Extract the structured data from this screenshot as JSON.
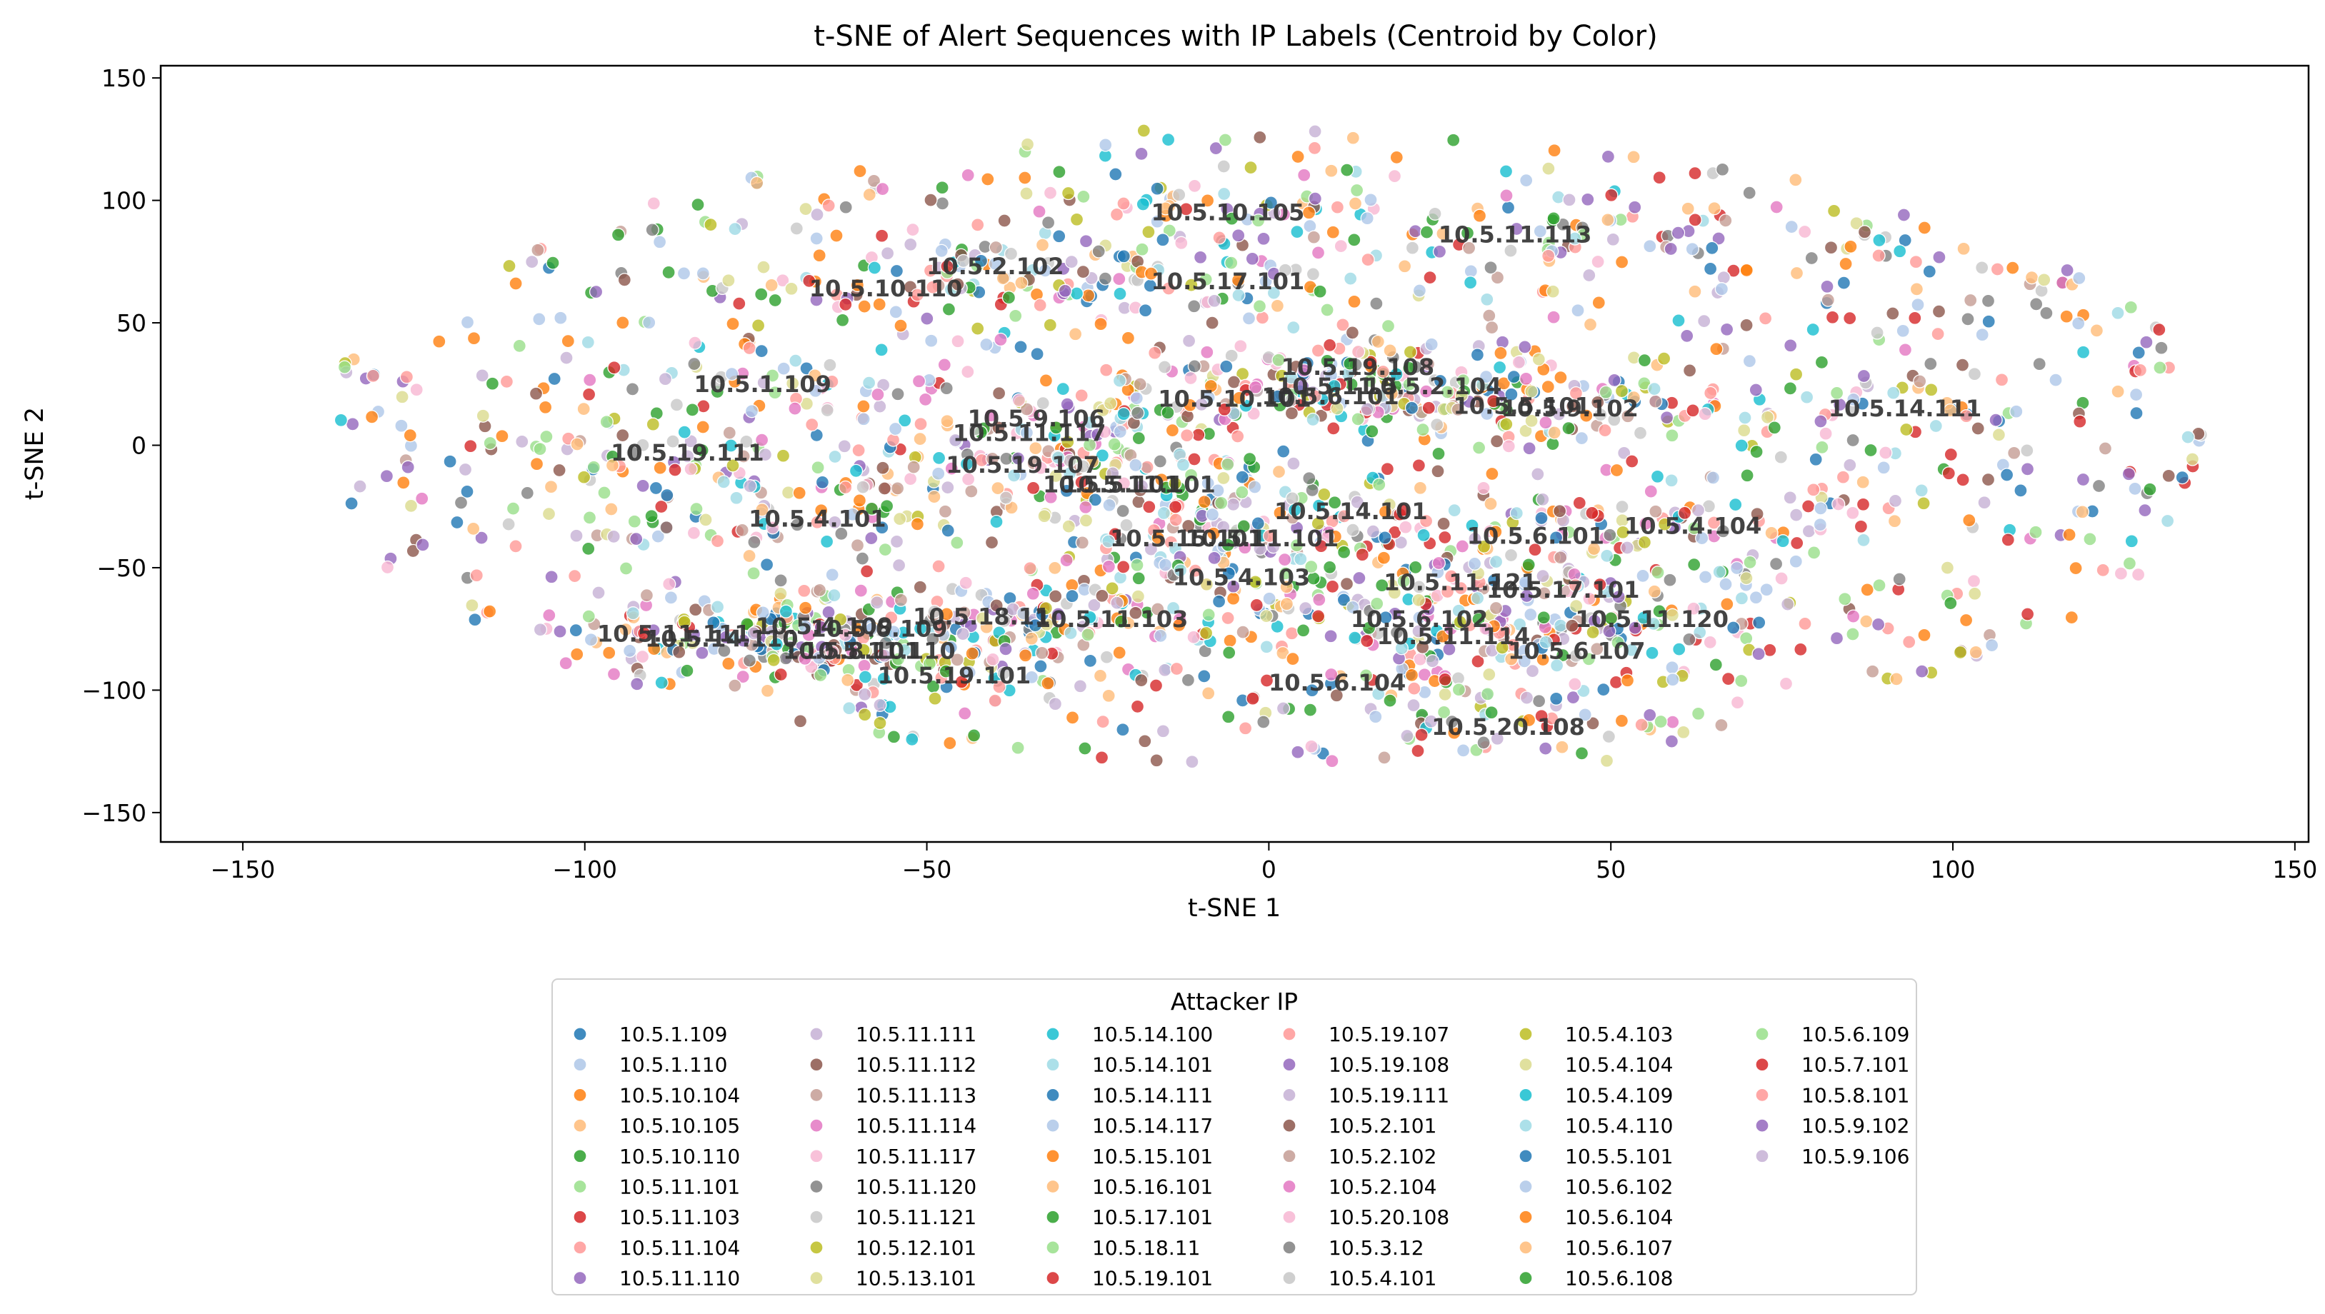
{
  "chart_data": {
    "type": "scatter",
    "title": "t-SNE of Alert Sequences with IP Labels (Centroid by Color)",
    "xlabel": "t-SNE 1",
    "ylabel": "t-SNE 2",
    "xlim": [
      -162,
      152
    ],
    "ylim": [
      -162,
      155
    ],
    "xticks": [
      -150,
      -100,
      -50,
      0,
      50,
      100,
      150
    ],
    "yticks": [
      150,
      100,
      50,
      0,
      -50,
      -100,
      -150
    ],
    "xtick_labels": [
      "−150",
      "−100",
      "−50",
      "0",
      "50",
      "100",
      "150"
    ],
    "ytick_labels": [
      "150",
      "100",
      "50",
      "0",
      "−50",
      "−100",
      "−150"
    ],
    "grid": false,
    "legend": {
      "title": "Attacker IP",
      "placement": "below the plot, centered, 6 columns"
    },
    "series": [
      {
        "name": "10.5.1.109",
        "color": "#1f77b4"
      },
      {
        "name": "10.5.1.110",
        "color": "#aec7e8"
      },
      {
        "name": "10.5.10.104",
        "color": "#ff7f0e"
      },
      {
        "name": "10.5.10.105",
        "color": "#ffbb78"
      },
      {
        "name": "10.5.10.110",
        "color": "#2ca02c"
      },
      {
        "name": "10.5.11.101",
        "color": "#98df8a"
      },
      {
        "name": "10.5.11.103",
        "color": "#d62728"
      },
      {
        "name": "10.5.11.104",
        "color": "#ff9896"
      },
      {
        "name": "10.5.11.110",
        "color": "#9467bd"
      },
      {
        "name": "10.5.11.111",
        "color": "#c5b0d5"
      },
      {
        "name": "10.5.11.112",
        "color": "#8c564b"
      },
      {
        "name": "10.5.11.113",
        "color": "#c49c94"
      },
      {
        "name": "10.5.11.114",
        "color": "#e377c2"
      },
      {
        "name": "10.5.11.117",
        "color": "#f7b6d2"
      },
      {
        "name": "10.5.11.120",
        "color": "#7f7f7f"
      },
      {
        "name": "10.5.11.121",
        "color": "#c7c7c7"
      },
      {
        "name": "10.5.12.101",
        "color": "#bcbd22"
      },
      {
        "name": "10.5.13.101",
        "color": "#dbdb8d"
      },
      {
        "name": "10.5.14.100",
        "color": "#17becf"
      },
      {
        "name": "10.5.14.101",
        "color": "#9edae5"
      },
      {
        "name": "10.5.14.111",
        "color": "#1f77b4"
      },
      {
        "name": "10.5.14.117",
        "color": "#aec7e8"
      },
      {
        "name": "10.5.15.101",
        "color": "#ff7f0e"
      },
      {
        "name": "10.5.16.101",
        "color": "#ffbb78"
      },
      {
        "name": "10.5.17.101",
        "color": "#2ca02c"
      },
      {
        "name": "10.5.18.11",
        "color": "#98df8a"
      },
      {
        "name": "10.5.19.101",
        "color": "#d62728"
      },
      {
        "name": "10.5.19.107",
        "color": "#ff9896"
      },
      {
        "name": "10.5.19.108",
        "color": "#9467bd"
      },
      {
        "name": "10.5.19.111",
        "color": "#c5b0d5"
      },
      {
        "name": "10.5.2.101",
        "color": "#8c564b"
      },
      {
        "name": "10.5.2.102",
        "color": "#c49c94"
      },
      {
        "name": "10.5.2.104",
        "color": "#e377c2"
      },
      {
        "name": "10.5.20.108",
        "color": "#f7b6d2"
      },
      {
        "name": "10.5.3.12",
        "color": "#7f7f7f"
      },
      {
        "name": "10.5.4.101",
        "color": "#c7c7c7"
      },
      {
        "name": "10.5.4.103",
        "color": "#bcbd22"
      },
      {
        "name": "10.5.4.104",
        "color": "#dbdb8d"
      },
      {
        "name": "10.5.4.109",
        "color": "#17becf"
      },
      {
        "name": "10.5.4.110",
        "color": "#9edae5"
      },
      {
        "name": "10.5.5.101",
        "color": "#1f77b4"
      },
      {
        "name": "10.5.6.102",
        "color": "#aec7e8"
      },
      {
        "name": "10.5.6.104",
        "color": "#ff7f0e"
      },
      {
        "name": "10.5.6.107",
        "color": "#ffbb78"
      },
      {
        "name": "10.5.6.108",
        "color": "#2ca02c"
      },
      {
        "name": "10.5.6.109",
        "color": "#98df8a"
      },
      {
        "name": "10.5.7.101",
        "color": "#d62728"
      },
      {
        "name": "10.5.8.101",
        "color": "#ff9896"
      },
      {
        "name": "10.5.9.102",
        "color": "#9467bd"
      },
      {
        "name": "10.5.9.106",
        "color": "#c5b0d5"
      }
    ],
    "centroid_labels": [
      {
        "text": "10.5.10.105",
        "x": -6,
        "y": 95
      },
      {
        "text": "10.5.11.113",
        "x": 36,
        "y": 86
      },
      {
        "text": "10.5.2.102",
        "x": -40,
        "y": 73
      },
      {
        "text": "10.5.17.101",
        "x": -6,
        "y": 67
      },
      {
        "text": "10.5.10.110",
        "x": -56,
        "y": 64
      },
      {
        "text": "10.5.19.108",
        "x": 13,
        "y": 32
      },
      {
        "text": "10.5.1.109",
        "x": -74,
        "y": 25
      },
      {
        "text": "10.5.2.104",
        "x": 24,
        "y": 24
      },
      {
        "text": "10.5.10.101",
        "x": -5,
        "y": 19
      },
      {
        "text": "10.5.6.101",
        "x": 9,
        "y": 20
      },
      {
        "text": "10.5.11.5",
        "x": 10,
        "y": 24
      },
      {
        "text": "10.5.5.101",
        "x": 37,
        "y": 16
      },
      {
        "text": "10.5.9.102",
        "x": 44,
        "y": 15
      },
      {
        "text": "10.5.14.111",
        "x": 93,
        "y": 15
      },
      {
        "text": "10.5.9.106",
        "x": -34,
        "y": 11
      },
      {
        "text": "10.5.11.117",
        "x": -35,
        "y": 5
      },
      {
        "text": "10.5.19.111",
        "x": -85,
        "y": -3
      },
      {
        "text": "10.5.19.107",
        "x": -36,
        "y": -8
      },
      {
        "text": "10.5.11.101",
        "x": -19,
        "y": -16
      },
      {
        "text": "10.5.5.101",
        "x": -23,
        "y": -16
      },
      {
        "text": "10.5.14.101",
        "x": 12,
        "y": -27
      },
      {
        "text": "10.5.4.101",
        "x": -66,
        "y": -30
      },
      {
        "text": "10.5.11.101",
        "x": -1,
        "y": -38
      },
      {
        "text": "10.5.15.101",
        "x": -12,
        "y": -38
      },
      {
        "text": "10.5.6.101",
        "x": 39,
        "y": -37
      },
      {
        "text": "10.5.4.104",
        "x": 62,
        "y": -33
      },
      {
        "text": "10.5.4.103",
        "x": -4,
        "y": -54
      },
      {
        "text": "10.5.11.121",
        "x": 28,
        "y": -56
      },
      {
        "text": "10.5.17.101",
        "x": 43,
        "y": -59
      },
      {
        "text": "10.5.18.11",
        "x": -42,
        "y": -70
      },
      {
        "text": "10.5.11.103",
        "x": -23,
        "y": -71
      },
      {
        "text": "10.5.6.102",
        "x": 22,
        "y": -71
      },
      {
        "text": "10.5.11.120",
        "x": 56,
        "y": -71
      },
      {
        "text": "10.5.4.109",
        "x": -65,
        "y": -74
      },
      {
        "text": "10.5.6.109",
        "x": -57,
        "y": -75
      },
      {
        "text": "10.5.11.111",
        "x": -87,
        "y": -77
      },
      {
        "text": "10.5.14.110",
        "x": -80,
        "y": -79
      },
      {
        "text": "10.5.8.101",
        "x": -61,
        "y": -84
      },
      {
        "text": "10.5.11.110",
        "x": -57,
        "y": -84
      },
      {
        "text": "10.5.11.114",
        "x": 27,
        "y": -78
      },
      {
        "text": "10.5.6.107",
        "x": 45,
        "y": -84
      },
      {
        "text": "10.5.19.101",
        "x": -46,
        "y": -94
      },
      {
        "text": "10.5.6.104",
        "x": 10,
        "y": -97
      },
      {
        "text": "10.5.20.108",
        "x": 35,
        "y": -115
      }
    ]
  }
}
